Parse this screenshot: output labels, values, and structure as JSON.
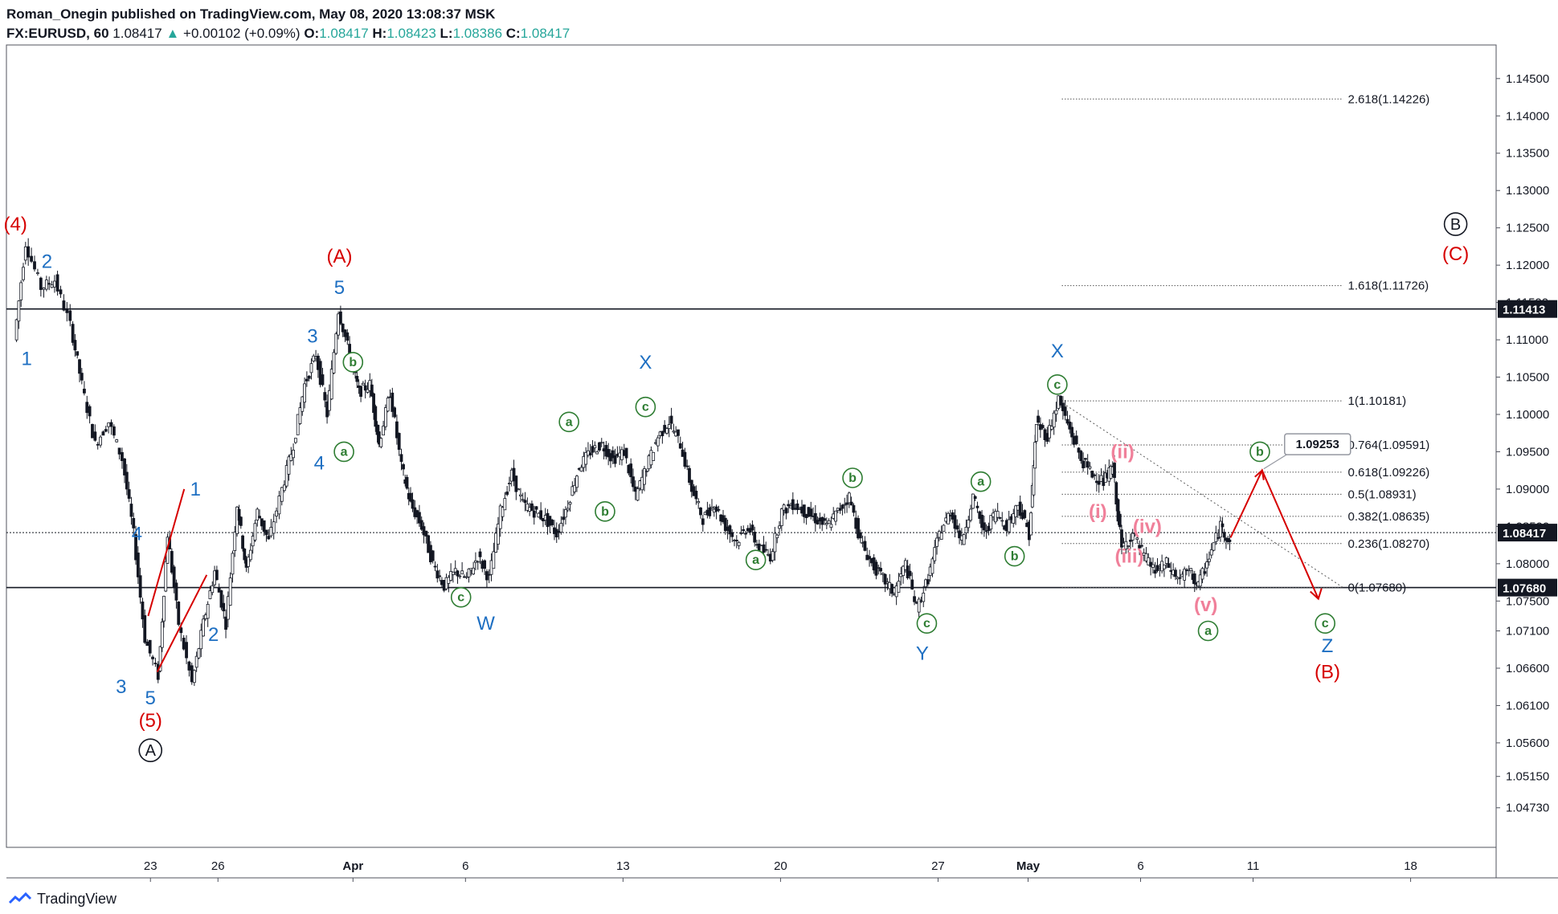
{
  "header": {
    "published": "Roman_Onegin published on TradingView.com, May 08, 2020 13:08:37 MSK",
    "symbol": "FX:EURUSD, 60",
    "last": "1.08417",
    "change": "+0.00102 (+0.09%)",
    "o_label": "O:",
    "o": "1.08417",
    "h_label": "H:",
    "h": "1.08423",
    "l_label": "L:",
    "l": "1.08386",
    "c_label": "C:",
    "c": "1.08417"
  },
  "footer": {
    "brand": "TradingView"
  },
  "colors": {
    "red": "#d60000",
    "blue": "#1e6fc2",
    "green": "#2e7d32",
    "pink": "#f0809a",
    "black": "#131722"
  },
  "chart_data": {
    "type": "candlestick",
    "symbol": "FX:EURUSD",
    "timeframe": "60",
    "ylim": [
      1.047,
      1.15
    ],
    "y_ticks": [
      "1.14500",
      "1.14000",
      "1.13500",
      "1.13000",
      "1.12500",
      "1.12000",
      "1.11500",
      "1.11000",
      "1.10500",
      "1.10000",
      "1.09500",
      "1.09000",
      "1.08500",
      "1.08000",
      "1.07500",
      "1.07100",
      "1.06600",
      "1.06100",
      "1.05600",
      "1.05150",
      "1.04730"
    ],
    "x_ticks": [
      {
        "label": "23",
        "day": 23
      },
      {
        "label": "26",
        "day": 26
      },
      {
        "label": "Apr",
        "day": 32
      },
      {
        "label": "6",
        "day": 37
      },
      {
        "label": "13",
        "day": 44
      },
      {
        "label": "20",
        "day": 51
      },
      {
        "label": "27",
        "day": 58
      },
      {
        "label": "May",
        "day": 62
      },
      {
        "label": "6",
        "day": 67
      },
      {
        "label": "11",
        "day": 72
      },
      {
        "label": "18",
        "day": 79
      }
    ],
    "price_path": [
      [
        17.0,
        1.11
      ],
      [
        17.5,
        1.123
      ],
      [
        18.2,
        1.117
      ],
      [
        18.8,
        1.118
      ],
      [
        19.5,
        1.112
      ],
      [
        20.0,
        1.104
      ],
      [
        20.6,
        1.096
      ],
      [
        21.2,
        1.099
      ],
      [
        21.8,
        1.094
      ],
      [
        22.3,
        1.084
      ],
      [
        22.8,
        1.07
      ],
      [
        23.4,
        1.065
      ],
      [
        23.8,
        1.084
      ],
      [
        24.3,
        1.072
      ],
      [
        24.9,
        1.064
      ],
      [
        25.4,
        1.072
      ],
      [
        25.9,
        1.079
      ],
      [
        26.4,
        1.072
      ],
      [
        26.9,
        1.088
      ],
      [
        27.3,
        1.079
      ],
      [
        27.8,
        1.087
      ],
      [
        28.3,
        1.083
      ],
      [
        28.9,
        1.09
      ],
      [
        29.4,
        1.096
      ],
      [
        29.9,
        1.104
      ],
      [
        30.4,
        1.108
      ],
      [
        30.9,
        1.1
      ],
      [
        31.4,
        1.114
      ],
      [
        31.9,
        1.108
      ],
      [
        32.3,
        1.103
      ],
      [
        32.8,
        1.104
      ],
      [
        33.2,
        1.096
      ],
      [
        33.7,
        1.103
      ],
      [
        34.2,
        1.093
      ],
      [
        34.6,
        1.088
      ],
      [
        35.1,
        1.085
      ],
      [
        35.6,
        1.08
      ],
      [
        36.1,
        1.077
      ],
      [
        36.6,
        1.079
      ],
      [
        37.1,
        1.078
      ],
      [
        37.6,
        1.081
      ],
      [
        38.1,
        1.078
      ],
      [
        38.6,
        1.087
      ],
      [
        39.1,
        1.092
      ],
      [
        39.6,
        1.088
      ],
      [
        40.1,
        1.087
      ],
      [
        40.6,
        1.086
      ],
      [
        41.1,
        1.084
      ],
      [
        41.6,
        1.088
      ],
      [
        42.1,
        1.093
      ],
      [
        42.6,
        1.095
      ],
      [
        43.1,
        1.096
      ],
      [
        43.6,
        1.094
      ],
      [
        44.1,
        1.095
      ],
      [
        44.6,
        1.089
      ],
      [
        45.1,
        1.093
      ],
      [
        45.6,
        1.097
      ],
      [
        46.1,
        1.099
      ],
      [
        46.6,
        1.096
      ],
      [
        47.1,
        1.09
      ],
      [
        47.6,
        1.086
      ],
      [
        48.1,
        1.088
      ],
      [
        48.6,
        1.085
      ],
      [
        49.1,
        1.083
      ],
      [
        49.6,
        1.085
      ],
      [
        50.1,
        1.082
      ],
      [
        50.6,
        1.081
      ],
      [
        51.1,
        1.087
      ],
      [
        51.6,
        1.088
      ],
      [
        52.1,
        1.087
      ],
      [
        52.6,
        1.086
      ],
      [
        53.1,
        1.085
      ],
      [
        53.6,
        1.087
      ],
      [
        54.1,
        1.089
      ],
      [
        54.6,
        1.083
      ],
      [
        55.1,
        1.08
      ],
      [
        55.6,
        1.078
      ],
      [
        56.1,
        1.076
      ],
      [
        56.6,
        1.08
      ],
      [
        57.1,
        1.074
      ],
      [
        57.6,
        1.078
      ],
      [
        58.1,
        1.084
      ],
      [
        58.6,
        1.087
      ],
      [
        59.1,
        1.083
      ],
      [
        59.6,
        1.089
      ],
      [
        60.1,
        1.084
      ],
      [
        60.6,
        1.087
      ],
      [
        61.1,
        1.085
      ],
      [
        61.6,
        1.088
      ],
      [
        62.1,
        1.084
      ],
      [
        62.4,
        1.099
      ],
      [
        62.9,
        1.097
      ],
      [
        63.4,
        1.102
      ],
      [
        63.9,
        1.098
      ],
      [
        64.4,
        1.094
      ],
      [
        64.9,
        1.092
      ],
      [
        65.4,
        1.091
      ],
      [
        65.8,
        1.093
      ],
      [
        66.2,
        1.082
      ],
      [
        66.7,
        1.084
      ],
      [
        67.2,
        1.081
      ],
      [
        67.7,
        1.079
      ],
      [
        68.2,
        1.08
      ],
      [
        68.7,
        1.078
      ],
      [
        69.2,
        1.079
      ],
      [
        69.6,
        1.077
      ],
      [
        70.1,
        1.081
      ],
      [
        70.6,
        1.085
      ],
      [
        71.0,
        1.083
      ]
    ],
    "horizontal_lines": [
      {
        "price": 1.11413,
        "label": "1.11413",
        "style": "solid"
      },
      {
        "price": 1.0768,
        "label": "1.07680",
        "style": "solid"
      },
      {
        "price": 1.08417,
        "label": "1.08417",
        "style": "dotted"
      }
    ],
    "fib_levels": [
      {
        "price": 1.14226,
        "label": "2.618(1.14226)"
      },
      {
        "price": 1.11726,
        "label": "1.618(1.11726)"
      },
      {
        "price": 1.10181,
        "label": "1(1.10181)"
      },
      {
        "price": 1.09591,
        "label": "0.764(1.09591)"
      },
      {
        "price": 1.09226,
        "label": "0.618(1.09226)"
      },
      {
        "price": 1.08931,
        "label": "0.5(1.08931)"
      },
      {
        "price": 1.08635,
        "label": "0.382(1.08635)"
      },
      {
        "price": 1.0827,
        "label": "0.236(1.08270)"
      },
      {
        "price": 1.0768,
        "label": "0(1.07680)"
      }
    ],
    "price_callout": "1.09253",
    "wave_labels": [
      {
        "text": "(4)",
        "day": 17.0,
        "price": 1.1255,
        "color": "red",
        "circle": false
      },
      {
        "text": "2",
        "day": 18.4,
        "price": 1.1205,
        "color": "blue",
        "circle": false
      },
      {
        "text": "1",
        "day": 17.5,
        "price": 1.1075,
        "color": "blue",
        "circle": false
      },
      {
        "text": "(A)",
        "day": 31.4,
        "price": 1.1212,
        "color": "red",
        "circle": false
      },
      {
        "text": "5",
        "day": 31.4,
        "price": 1.117,
        "color": "blue",
        "circle": false
      },
      {
        "text": "3",
        "day": 30.2,
        "price": 1.1105,
        "color": "blue",
        "circle": false
      },
      {
        "text": "4",
        "day": 30.5,
        "price": 1.0935,
        "color": "blue",
        "circle": false
      },
      {
        "text": "1",
        "day": 25.0,
        "price": 1.09,
        "color": "blue",
        "circle": false
      },
      {
        "text": "4",
        "day": 22.4,
        "price": 1.084,
        "color": "blue",
        "circle": false
      },
      {
        "text": "2",
        "day": 25.8,
        "price": 1.0705,
        "color": "blue",
        "circle": false
      },
      {
        "text": "3",
        "day": 21.7,
        "price": 1.0635,
        "color": "blue",
        "circle": false
      },
      {
        "text": "5",
        "day": 23.0,
        "price": 1.062,
        "color": "blue",
        "circle": false
      },
      {
        "text": "(5)",
        "day": 23.0,
        "price": 1.059,
        "color": "red",
        "circle": false
      },
      {
        "text": "A",
        "day": 23.0,
        "price": 1.055,
        "color": "black",
        "circle": true
      },
      {
        "text": "b",
        "day": 32.0,
        "price": 1.107,
        "color": "green",
        "circle": true
      },
      {
        "text": "a",
        "day": 31.6,
        "price": 1.095,
        "color": "green",
        "circle": true
      },
      {
        "text": "c",
        "day": 36.8,
        "price": 1.0755,
        "color": "green",
        "circle": true
      },
      {
        "text": "W",
        "day": 37.9,
        "price": 1.072,
        "color": "blue",
        "circle": false
      },
      {
        "text": "a",
        "day": 41.6,
        "price": 1.099,
        "color": "green",
        "circle": true
      },
      {
        "text": "b",
        "day": 43.2,
        "price": 1.087,
        "color": "green",
        "circle": true
      },
      {
        "text": "X",
        "day": 45.0,
        "price": 1.107,
        "color": "blue",
        "circle": false
      },
      {
        "text": "c",
        "day": 45.0,
        "price": 1.101,
        "color": "green",
        "circle": true
      },
      {
        "text": "a",
        "day": 49.9,
        "price": 1.0805,
        "color": "green",
        "circle": true
      },
      {
        "text": "b",
        "day": 54.2,
        "price": 1.0915,
        "color": "green",
        "circle": true
      },
      {
        "text": "c",
        "day": 57.5,
        "price": 1.072,
        "color": "green",
        "circle": true
      },
      {
        "text": "Y",
        "day": 57.3,
        "price": 1.068,
        "color": "blue",
        "circle": false
      },
      {
        "text": "a",
        "day": 59.9,
        "price": 1.091,
        "color": "green",
        "circle": true
      },
      {
        "text": "b",
        "day": 61.4,
        "price": 1.081,
        "color": "green",
        "circle": true
      },
      {
        "text": "X",
        "day": 63.3,
        "price": 1.1085,
        "color": "blue",
        "circle": false
      },
      {
        "text": "c",
        "day": 63.3,
        "price": 1.104,
        "color": "green",
        "circle": true
      },
      {
        "text": "(ii)",
        "day": 66.2,
        "price": 1.095,
        "color": "pink",
        "circle": false
      },
      {
        "text": "(i)",
        "day": 65.1,
        "price": 1.087,
        "color": "pink",
        "circle": false
      },
      {
        "text": "(iv)",
        "day": 67.3,
        "price": 1.085,
        "color": "pink",
        "circle": false
      },
      {
        "text": "(iii)",
        "day": 66.5,
        "price": 1.081,
        "color": "pink",
        "circle": false
      },
      {
        "text": "(v)",
        "day": 69.9,
        "price": 1.0745,
        "color": "pink",
        "circle": false
      },
      {
        "text": "a",
        "day": 70.0,
        "price": 1.071,
        "color": "green",
        "circle": true
      },
      {
        "text": "b",
        "day": 72.3,
        "price": 1.095,
        "color": "green",
        "circle": true
      },
      {
        "text": "c",
        "day": 75.2,
        "price": 1.072,
        "color": "green",
        "circle": true
      },
      {
        "text": "Z",
        "day": 75.3,
        "price": 1.069,
        "color": "blue",
        "circle": false
      },
      {
        "text": "(B)",
        "day": 75.3,
        "price": 1.0655,
        "color": "red",
        "circle": false
      },
      {
        "text": "B",
        "day": 81.0,
        "price": 1.1255,
        "color": "black",
        "circle": true
      },
      {
        "text": "(C)",
        "day": 81.0,
        "price": 1.1215,
        "color": "red",
        "circle": false
      }
    ]
  }
}
